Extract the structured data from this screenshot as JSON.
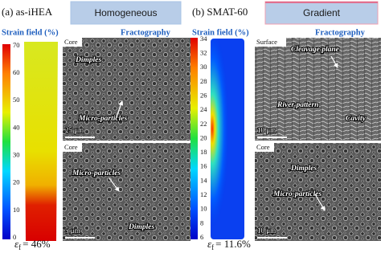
{
  "panels": [
    {
      "label": "(a) as-iHEA",
      "banner": "Homogeneous",
      "strain_title": "Strain field (%)",
      "fracto_title": "Fractography",
      "colorbar_ticks": [
        70,
        60,
        50,
        40,
        30,
        20,
        10,
        0
      ],
      "elongation": {
        "symbol": "ε",
        "subscript": "f",
        "text": "= 46%"
      },
      "images": [
        {
          "region": "Core",
          "labels": [
            "Dimples",
            "Micro-particles"
          ],
          "scale": "25 μm"
        },
        {
          "region": "Core",
          "labels": [
            "Micro-particles",
            "Dimples"
          ],
          "scale": "5 μm"
        }
      ]
    },
    {
      "label": "(b) SMAT-60",
      "banner": "Gradient",
      "strain_title": "Strain field (%)",
      "fracto_title": "Fractography",
      "colorbar_ticks": [
        34,
        32,
        30,
        28,
        26,
        24,
        22,
        20,
        18,
        16,
        14,
        12,
        10,
        8,
        6
      ],
      "elongation": {
        "symbol": "ε",
        "subscript": "f",
        "text": "= 11.6%"
      },
      "images": [
        {
          "region": "Surface",
          "labels": [
            "Cleavage plane",
            "River pattern",
            "Cavity"
          ],
          "scale": "10 μm"
        },
        {
          "region": "Core",
          "labels": [
            "Dimples",
            "Micro-particles"
          ],
          "scale": "10 μm"
        }
      ]
    }
  ]
}
